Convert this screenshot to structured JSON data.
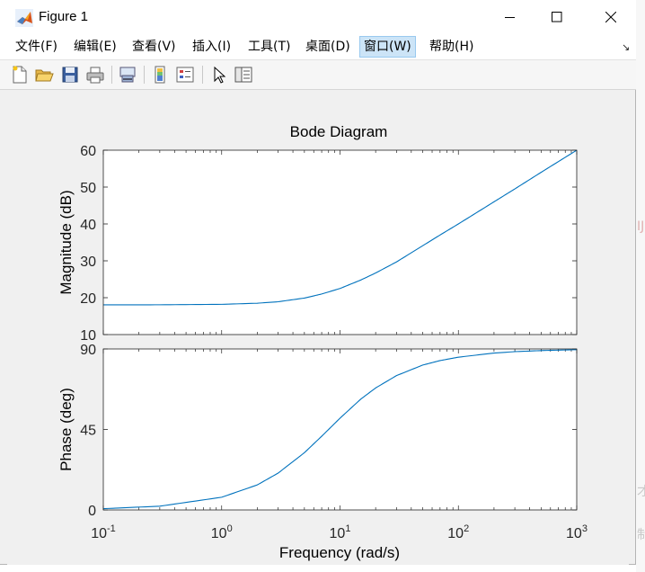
{
  "window": {
    "title": "Figure 1",
    "controls": {
      "minimize": "—",
      "maximize": "☐",
      "close": "✕"
    }
  },
  "menu": {
    "items": [
      "文件(F)",
      "编辑(E)",
      "查看(V)",
      "插入(I)",
      "工具(T)",
      "桌面(D)",
      "窗口(W)",
      "帮助(H)"
    ],
    "active_index": 6
  },
  "toolbar": {
    "icons": [
      "new-figure-icon",
      "open-file-icon",
      "save-icon",
      "print-icon",
      "link-plot-icon",
      "colorbar-icon",
      "legend-icon",
      "pointer-icon",
      "property-editor-icon"
    ]
  },
  "background_fragments": [
    "才",
    "IJ",
    "制"
  ],
  "colors": {
    "curve": "#0072bd",
    "axes_bg": "#ffffff",
    "figure_bg": "#f0f0f0",
    "axis_text": "#262626"
  },
  "chart_data": {
    "type": "line",
    "title": "Bode Diagram",
    "xlabel": "Frequency  (rad/s)",
    "xscale": "log",
    "xlim": [
      0.1,
      1000
    ],
    "x_ticks": [
      {
        "base": "10",
        "exp": "-1"
      },
      {
        "base": "10",
        "exp": "0"
      },
      {
        "base": "10",
        "exp": "1"
      },
      {
        "base": "10",
        "exp": "2"
      },
      {
        "base": "10",
        "exp": "3"
      }
    ],
    "magnitude": {
      "ylabel": "Magnitude (dB)",
      "ylim": [
        10,
        60
      ],
      "y_ticks": [
        "10",
        "20",
        "30",
        "40",
        "50",
        "60"
      ],
      "x": [
        0.1,
        0.3,
        1,
        2,
        3,
        5,
        7,
        10,
        15,
        20,
        30,
        50,
        70,
        100,
        200,
        300,
        500,
        1000
      ],
      "values": [
        18.06,
        18.08,
        18.2,
        18.5,
        18.9,
        19.9,
        21.0,
        22.5,
        24.8,
        26.7,
        29.7,
        34.1,
        37.0,
        40.0,
        46.0,
        49.5,
        54.0,
        60.0
      ]
    },
    "phase": {
      "ylabel": "Phase (deg)",
      "ylim": [
        0,
        90
      ],
      "y_ticks": [
        "0",
        "45",
        "90"
      ],
      "x": [
        0.1,
        0.3,
        1,
        2,
        3,
        5,
        7,
        10,
        15,
        20,
        30,
        50,
        70,
        100,
        200,
        300,
        500,
        1000
      ],
      "values": [
        0.7,
        2.1,
        7.1,
        14.0,
        20.6,
        32.0,
        41.2,
        51.3,
        62.0,
        68.2,
        75.1,
        81.0,
        83.5,
        85.4,
        87.7,
        88.5,
        89.1,
        89.6
      ]
    }
  }
}
